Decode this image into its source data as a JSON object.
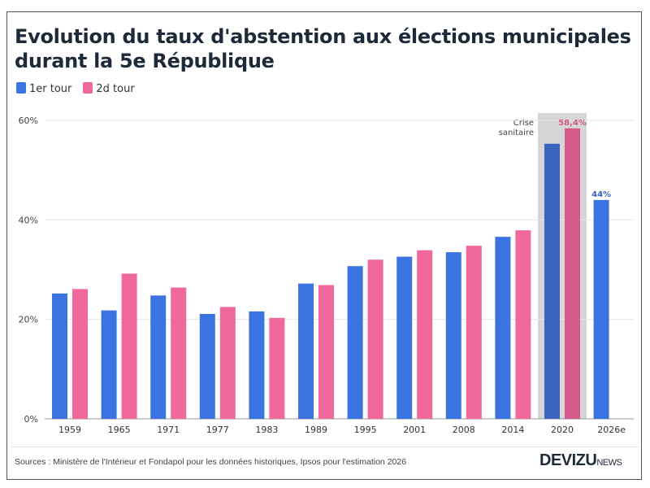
{
  "chart_data": {
    "type": "bar",
    "title": "Evolution du taux d'abstention aux élections municipales durant la 5e République",
    "categories": [
      "1959",
      "1965",
      "1971",
      "1977",
      "1983",
      "1989",
      "1995",
      "2001",
      "2008",
      "2014",
      "2020",
      "2026e"
    ],
    "series": [
      {
        "name": "1er tour",
        "color": "#3b74e0",
        "highlight_color": "#3a64c0",
        "values": [
          25.2,
          21.8,
          24.8,
          21.1,
          21.6,
          27.2,
          30.7,
          32.6,
          33.5,
          36.6,
          55.3,
          44
        ]
      },
      {
        "name": "2d tour",
        "color": "#f0689c",
        "highlight_color": "#d45a8a",
        "values": [
          26.1,
          29.2,
          26.4,
          22.5,
          20.3,
          26.9,
          32.0,
          33.9,
          34.8,
          37.9,
          58.4,
          null
        ]
      }
    ],
    "ylim": [
      0,
      60
    ],
    "yticks": [
      "0%",
      "20%",
      "40%",
      "60%"
    ],
    "grid": true,
    "legend": "top-left",
    "highlight": {
      "category": "2020",
      "label": "Crise sanitaire"
    },
    "data_labels": [
      {
        "category": "2020",
        "series": "2d tour",
        "text": "58,4%"
      },
      {
        "category": "2026e",
        "series": "1er tour",
        "text": "44%"
      }
    ]
  },
  "footer": {
    "sources": "Sources : Ministère de l'Intérieur et Fondapol pour les données historiques, Ipsos pour l'estimation 2026",
    "logo_main": "DEVIZU",
    "logo_suffix": ".NEWS"
  }
}
